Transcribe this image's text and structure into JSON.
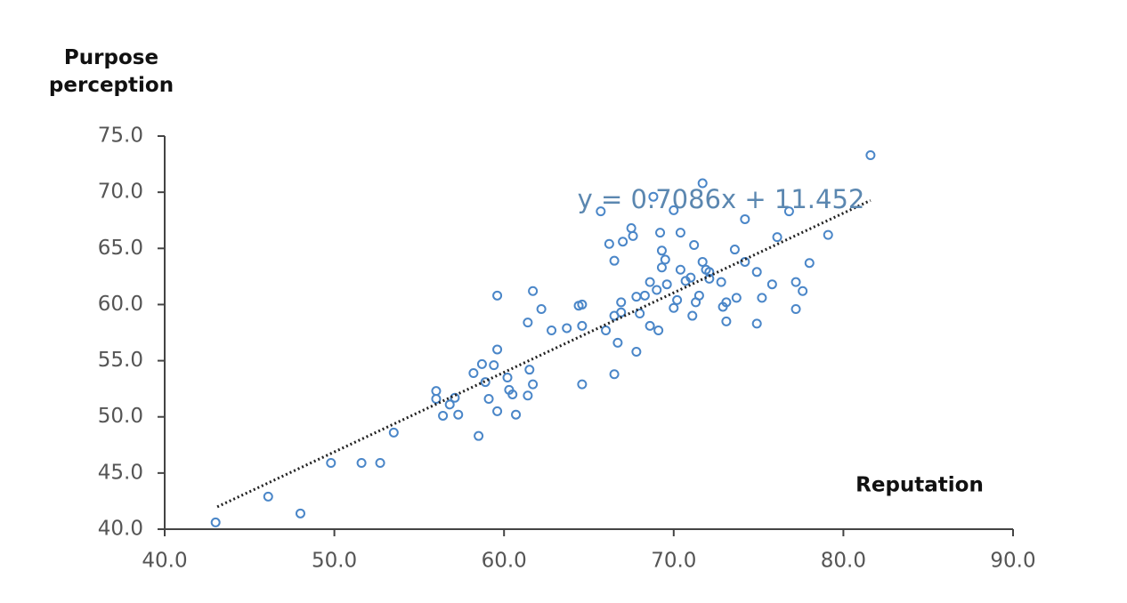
{
  "chart_data": {
    "type": "scatter",
    "x_label": "Reputation",
    "y_label": "Purpose perception",
    "color": "#4a86c8",
    "x": [
      43.0,
      46.1,
      48.0,
      49.8,
      51.6,
      52.7,
      53.5,
      56.0,
      56.0,
      56.4,
      56.8,
      57.1,
      57.3,
      58.2,
      58.5,
      58.7,
      58.9,
      59.1,
      59.4,
      59.6,
      59.6,
      59.6,
      60.2,
      60.3,
      60.5,
      60.7,
      61.4,
      61.4,
      61.5,
      61.7,
      61.7,
      62.2,
      62.8,
      63.7,
      64.4,
      64.6,
      64.6,
      64.6,
      65.7,
      66.0,
      66.2,
      66.5,
      66.5,
      66.5,
      66.7,
      66.9,
      66.9,
      67.0,
      67.5,
      67.6,
      67.8,
      67.8,
      68.0,
      68.3,
      68.6,
      68.6,
      68.8,
      69.0,
      69.1,
      69.2,
      69.3,
      69.3,
      69.5,
      69.6,
      70.0,
      70.0,
      70.2,
      70.4,
      70.4,
      70.7,
      71.0,
      71.1,
      71.2,
      71.3,
      71.5,
      71.7,
      71.7,
      71.9,
      72.1,
      72.1,
      72.8,
      72.9,
      73.1,
      73.1,
      73.6,
      73.7,
      74.2,
      74.2,
      74.9,
      74.9,
      75.2,
      75.8,
      76.1,
      76.8,
      77.2,
      77.2,
      77.6,
      78.0,
      79.1,
      81.6
    ],
    "values": [
      40.6,
      42.9,
      41.4,
      45.9,
      45.9,
      45.9,
      48.6,
      52.3,
      51.6,
      50.1,
      51.1,
      51.7,
      50.2,
      53.9,
      48.3,
      54.7,
      53.1,
      51.6,
      54.6,
      56.0,
      60.8,
      50.5,
      53.5,
      52.4,
      52.0,
      50.2,
      51.9,
      58.4,
      54.2,
      52.9,
      61.2,
      59.6,
      57.7,
      57.9,
      59.9,
      60.0,
      58.1,
      52.9,
      68.3,
      57.7,
      65.4,
      63.9,
      59.0,
      53.8,
      56.6,
      60.2,
      59.3,
      65.6,
      66.8,
      66.1,
      55.8,
      60.7,
      59.2,
      60.8,
      62.0,
      58.1,
      69.6,
      61.3,
      57.7,
      66.4,
      64.8,
      63.3,
      64.0,
      61.8,
      68.4,
      59.7,
      60.4,
      66.4,
      63.1,
      62.1,
      62.4,
      59.0,
      65.3,
      60.2,
      60.8,
      70.8,
      63.8,
      63.1,
      62.3,
      62.9,
      62.0,
      59.8,
      60.2,
      58.5,
      64.9,
      60.6,
      67.6,
      63.8,
      62.9,
      58.3,
      60.6,
      61.8,
      66.0,
      68.3,
      59.6,
      62.0,
      61.2,
      63.7,
      66.2,
      73.3
    ],
    "trendline": {
      "label": "y = 0.7086x + 11.452",
      "x": [
        43.1,
        81.6
      ],
      "y": [
        41.99,
        69.27
      ]
    },
    "xlim": [
      40,
      90
    ],
    "xticks": [
      {
        "value": 40,
        "label": "40.0"
      },
      {
        "value": 50,
        "label": "50.0"
      },
      {
        "value": 60,
        "label": "60.0"
      },
      {
        "value": 70,
        "label": "70.0"
      },
      {
        "value": 80,
        "label": "80.0"
      },
      {
        "value": 90,
        "label": "90.0"
      }
    ],
    "ylim": [
      40,
      75
    ],
    "yticks": [
      {
        "value": 40,
        "label": "40.0"
      },
      {
        "value": 45,
        "label": "45.0"
      },
      {
        "value": 50,
        "label": "50.0"
      },
      {
        "value": 55,
        "label": "55.0"
      },
      {
        "value": 60,
        "label": "60.0"
      },
      {
        "value": 65,
        "label": "65.0"
      },
      {
        "value": 70,
        "label": "70.0"
      },
      {
        "value": 75,
        "label": "75.0"
      }
    ],
    "grid": false
  }
}
